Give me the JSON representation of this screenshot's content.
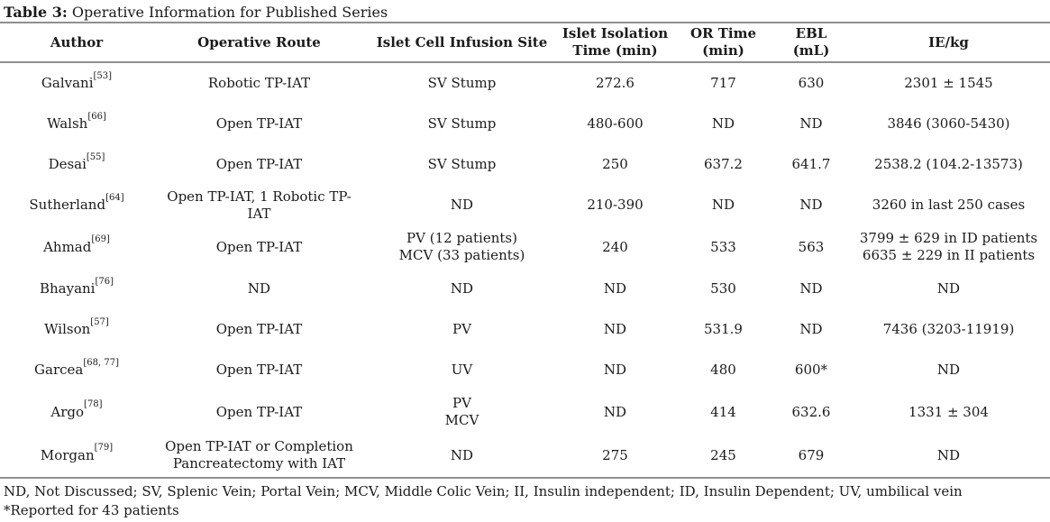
{
  "title": {
    "label": "Table 3:",
    "text": " Operative Information for Published Series"
  },
  "colors": {
    "rule": "#909090",
    "text": "#1b1b1b",
    "background": "#ffffff"
  },
  "table": {
    "columns": [
      "Author",
      "Operative Route",
      "Islet Cell Infusion Site",
      "Islet Isolation\nTime (min)",
      "OR Time\n(min)",
      "EBL (mL)",
      "IE/kg"
    ],
    "rows": [
      {
        "author": "Galvani",
        "ref": "[53]",
        "route": "Robotic TP-IAT",
        "site": "SV Stump",
        "isolation": "272.6",
        "or_time": "717",
        "ebl": "630",
        "ie_kg": "2301 ± 1545"
      },
      {
        "author": "Walsh",
        "ref": "[66]",
        "route": "Open TP-IAT",
        "site": "SV Stump",
        "isolation": "480-600",
        "or_time": "ND",
        "ebl": "ND",
        "ie_kg": "3846 (3060-5430)"
      },
      {
        "author": "Desai",
        "ref": "[55]",
        "route": "Open TP-IAT",
        "site": "SV Stump",
        "isolation": "250",
        "or_time": "637.2",
        "ebl": "641.7",
        "ie_kg": "2538.2 (104.2-13573)"
      },
      {
        "author": "Sutherland",
        "ref": "[64]",
        "route": "Open TP-IAT, 1 Robotic TP-IAT",
        "site": "ND",
        "isolation": "210-390",
        "or_time": "ND",
        "ebl": "ND",
        "ie_kg": "3260 in last 250 cases"
      },
      {
        "author": "Ahmad",
        "ref": "[69]",
        "route": "Open TP-IAT",
        "site": "PV (12 patients)\nMCV (33 patients)",
        "isolation": "240",
        "or_time": "533",
        "ebl": "563",
        "ie_kg": "3799 ± 629 in ID patients\n6635 ± 229 in II patients"
      },
      {
        "author": "Bhayani",
        "ref": "[76]",
        "route": "ND",
        "site": "ND",
        "isolation": "ND",
        "or_time": "530",
        "ebl": "ND",
        "ie_kg": "ND"
      },
      {
        "author": "Wilson",
        "ref": "[57]",
        "route": "Open TP-IAT",
        "site": "PV",
        "isolation": "ND",
        "or_time": "531.9",
        "ebl": "ND",
        "ie_kg": "7436 (3203-11919)"
      },
      {
        "author": "Garcea",
        "ref": "[68, 77]",
        "route": "Open TP-IAT",
        "site": "UV",
        "isolation": "ND",
        "or_time": "480",
        "ebl": "600*",
        "ie_kg": "ND"
      },
      {
        "author": "Argo",
        "ref": "[78]",
        "route": "Open TP-IAT",
        "site": "PV\nMCV",
        "isolation": "ND",
        "or_time": "414",
        "ebl": "632.6",
        "ie_kg": "1331 ± 304"
      },
      {
        "author": "Morgan",
        "ref": "[79]",
        "route": "Open TP-IAT or Completion\nPancreatectomy with IAT",
        "site": "ND",
        "isolation": "275",
        "or_time": "245",
        "ebl": "679",
        "ie_kg": "ND"
      }
    ]
  },
  "footnotes": {
    "abbreviations": "ND, Not Discussed; SV, Splenic Vein; Portal Vein; MCV, Middle Colic Vein; II, Insulin independent; ID, Insulin Dependent; UV, umbilical vein",
    "note": "*Reported for 43 patients"
  }
}
